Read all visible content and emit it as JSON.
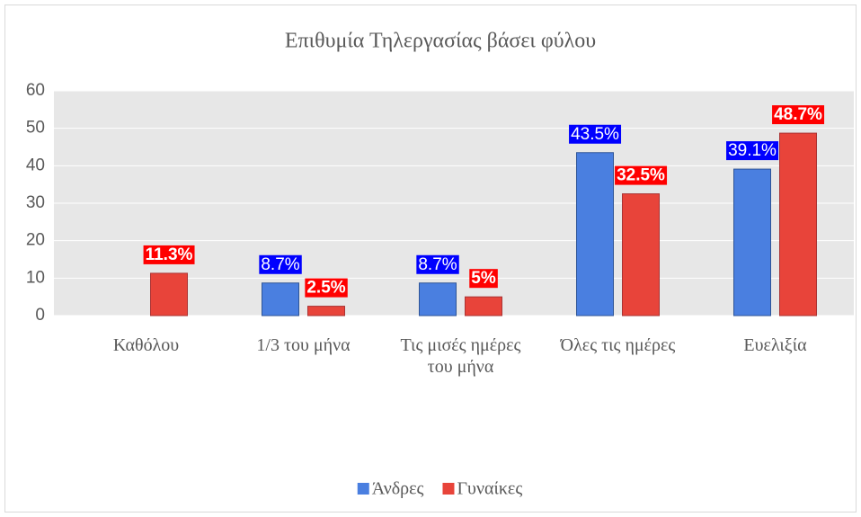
{
  "chart_data": {
    "type": "bar",
    "title": "Επιθυμία Τηλεργασίας βάσει φύλου",
    "categories": [
      "Καθόλου",
      "1/3 του μήνα",
      "Τις μισές ημέρες του μήνα",
      "Όλες τις ημέρες",
      "Ευελιξία"
    ],
    "series": [
      {
        "name": "Άνδρες",
        "color": "#4a7fe0",
        "label_color": "#0000ff",
        "values": [
          null,
          8.7,
          8.7,
          43.5,
          39.1
        ],
        "value_labels": [
          null,
          "8.7%",
          "8.7%",
          "43.5%",
          "39.1%"
        ]
      },
      {
        "name": "Γυναίκες",
        "color": "#e8443a",
        "label_color": "#ff0000",
        "values": [
          11.3,
          2.5,
          5,
          32.5,
          48.7
        ],
        "value_labels": [
          "11.3%",
          "2.5%",
          "5%",
          "32.5%",
          "48.7%"
        ]
      }
    ],
    "ylim": [
      0,
      60
    ],
    "yticks": [
      0,
      10,
      20,
      30,
      40,
      50,
      60
    ],
    "grid": true,
    "legend": "bottom"
  }
}
